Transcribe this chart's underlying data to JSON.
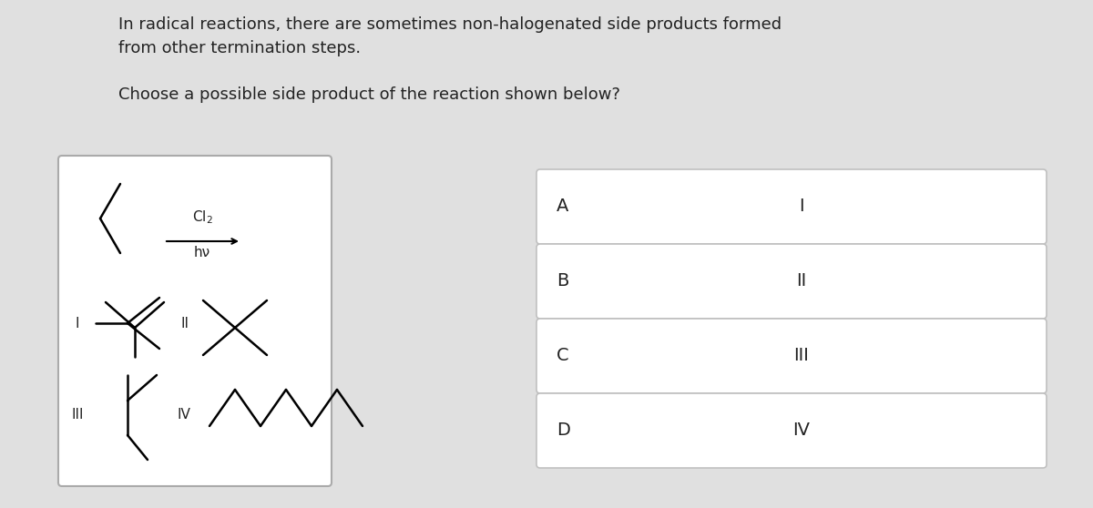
{
  "bg_color": "#e0e0e0",
  "box_bg": "#ffffff",
  "text_color": "#222222",
  "title_line1": "In radical reactions, there are sometimes non-halogenated side products formed",
  "title_line2": "from other termination steps.",
  "question": "Choose a possible side product of the reaction shown below?",
  "answer_labels": [
    "A",
    "B",
    "C",
    "D"
  ],
  "answer_roman": [
    "I",
    "II",
    "III",
    "IV"
  ],
  "font_size_title": 13.0,
  "font_size_question": 13.0,
  "font_size_labels": 14,
  "font_size_roman": 14,
  "font_size_struct": 11
}
